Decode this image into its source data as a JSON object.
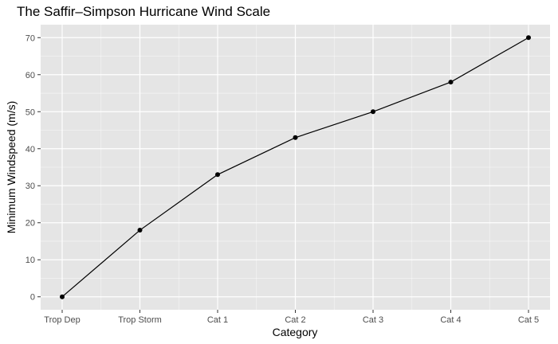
{
  "chart_data": {
    "type": "line",
    "title": "The Saffir–Simpson Hurricane Wind Scale",
    "xlabel": "Category",
    "ylabel": "Minimum Windspeed (m/s)",
    "categories": [
      "Trop Dep",
      "Trop Storm",
      "Cat 1",
      "Cat 2",
      "Cat 3",
      "Cat 4",
      "Cat 5"
    ],
    "values": [
      0,
      18,
      33,
      43,
      50,
      58,
      70
    ],
    "yticks": [
      "0",
      "10",
      "20",
      "30",
      "40",
      "50",
      "60",
      "70"
    ],
    "ylim": [
      -3.5,
      73.5
    ],
    "grid": true,
    "legend": "none",
    "colors": {
      "panel": "#e5e5e5",
      "grid_major": "#ffffff",
      "line": "#000000",
      "point": "#000000"
    }
  }
}
